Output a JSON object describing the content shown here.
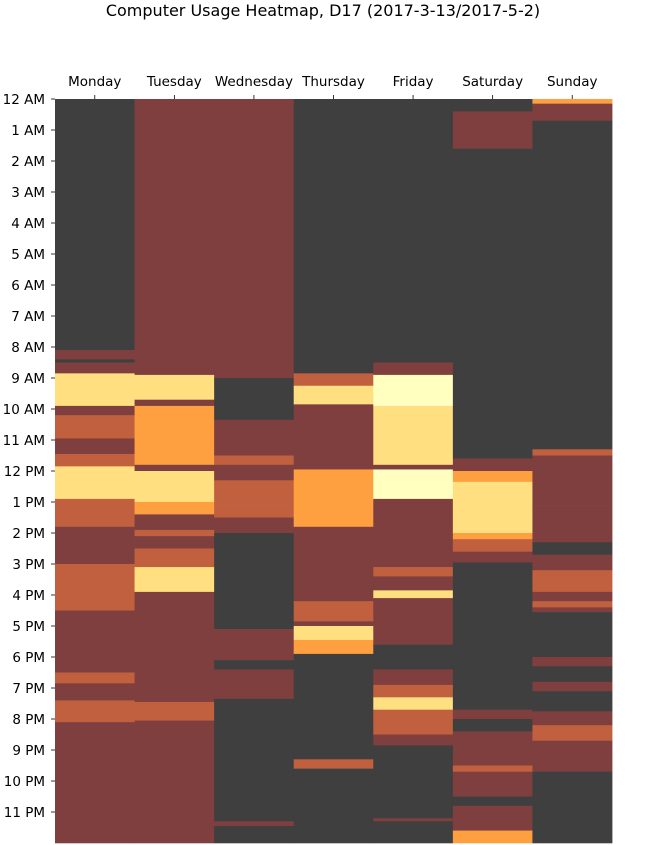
{
  "chart_data": {
    "type": "heatmap",
    "title": "Computer Usage Heatmap, D17 (2017-3-13/2017-5-2)",
    "columns": [
      "Monday",
      "Tuesday",
      "Wednesday",
      "Thursday",
      "Friday",
      "Saturday",
      "Sunday"
    ],
    "rows": [
      "12 AM",
      "1 AM",
      "2 AM",
      "3 AM",
      "4 AM",
      "5 AM",
      "6 AM",
      "7 AM",
      "8 AM",
      "9 AM",
      "10 AM",
      "11 AM",
      "12 PM",
      "1 PM",
      "2 PM",
      "3 PM",
      "4 PM",
      "5 PM",
      "6 PM",
      "7 PM",
      "8 PM",
      "9 PM",
      "10 PM",
      "11 PM"
    ],
    "y_range_hours": [
      0,
      24
    ],
    "x_tick_position": "top",
    "grid": false,
    "legend": "none",
    "colors": {
      "0": "#3f3f3f",
      "1": "#7f3f3f",
      "2": "#c0603f",
      "3": "#ffa040",
      "4": "#ffdf80",
      "5": "#ffffc0"
    },
    "segments": [
      [
        [
          0,
          8.1,
          0
        ],
        [
          8.1,
          8.4,
          1
        ],
        [
          8.4,
          8.5,
          0
        ],
        [
          8.5,
          8.85,
          1
        ],
        [
          8.85,
          9.9,
          4
        ],
        [
          9.9,
          10.2,
          1
        ],
        [
          10.2,
          10.95,
          2
        ],
        [
          10.95,
          11.45,
          1
        ],
        [
          11.45,
          11.85,
          2
        ],
        [
          11.85,
          12.9,
          4
        ],
        [
          12.9,
          13.4,
          2
        ],
        [
          13.4,
          13.8,
          2
        ],
        [
          13.8,
          15.0,
          1
        ],
        [
          15.0,
          16.5,
          2
        ],
        [
          16.5,
          18.5,
          1
        ],
        [
          18.5,
          18.85,
          2
        ],
        [
          18.85,
          19.4,
          1
        ],
        [
          19.4,
          20.1,
          2
        ],
        [
          20.1,
          24,
          1
        ]
      ],
      [
        [
          0,
          8.9,
          1
        ],
        [
          8.9,
          9.7,
          4
        ],
        [
          9.7,
          9.9,
          1
        ],
        [
          9.9,
          11.8,
          3
        ],
        [
          11.8,
          12.0,
          1
        ],
        [
          12.0,
          13.0,
          4
        ],
        [
          13.0,
          13.4,
          3
        ],
        [
          13.4,
          13.9,
          1
        ],
        [
          13.9,
          14.1,
          2
        ],
        [
          14.1,
          14.5,
          1
        ],
        [
          14.5,
          15.1,
          2
        ],
        [
          15.1,
          15.9,
          4
        ],
        [
          15.9,
          16.5,
          1
        ],
        [
          16.5,
          19.45,
          1
        ],
        [
          19.45,
          20.05,
          2
        ],
        [
          20.05,
          24,
          1
        ]
      ],
      [
        [
          0,
          9.0,
          1
        ],
        [
          9.0,
          10.35,
          0
        ],
        [
          10.35,
          11.5,
          1
        ],
        [
          11.5,
          11.8,
          2
        ],
        [
          11.8,
          12.3,
          1
        ],
        [
          12.3,
          13.1,
          2
        ],
        [
          13.1,
          13.5,
          2
        ],
        [
          13.5,
          14.0,
          1
        ],
        [
          14.0,
          14.9,
          0
        ],
        [
          14.9,
          16.9,
          0
        ],
        [
          16.9,
          17.1,
          0
        ],
        [
          17.1,
          18.1,
          1
        ],
        [
          18.1,
          18.4,
          0
        ],
        [
          18.4,
          18.8,
          1
        ],
        [
          18.8,
          19.35,
          1
        ],
        [
          19.35,
          23.3,
          0
        ],
        [
          23.3,
          23.45,
          1
        ],
        [
          23.45,
          24,
          0
        ]
      ],
      [
        [
          0,
          8.85,
          0
        ],
        [
          8.85,
          9.25,
          2
        ],
        [
          9.25,
          9.85,
          4
        ],
        [
          9.85,
          11.95,
          1
        ],
        [
          11.95,
          12.8,
          3
        ],
        [
          12.8,
          13.4,
          3
        ],
        [
          13.4,
          13.8,
          3
        ],
        [
          13.8,
          14.5,
          1
        ],
        [
          14.5,
          15.9,
          1
        ],
        [
          15.9,
          16.2,
          1
        ],
        [
          16.2,
          16.85,
          2
        ],
        [
          16.85,
          17.0,
          1
        ],
        [
          17.0,
          17.45,
          4
        ],
        [
          17.45,
          17.9,
          3
        ],
        [
          17.9,
          21.3,
          0
        ],
        [
          21.3,
          21.6,
          2
        ],
        [
          21.6,
          24,
          0
        ]
      ],
      [
        [
          0,
          8.5,
          0
        ],
        [
          8.5,
          8.9,
          1
        ],
        [
          8.9,
          9.9,
          5
        ],
        [
          9.9,
          11.8,
          4
        ],
        [
          11.8,
          11.95,
          1
        ],
        [
          11.95,
          12.9,
          5
        ],
        [
          12.9,
          15.1,
          1
        ],
        [
          15.1,
          15.4,
          2
        ],
        [
          15.4,
          15.85,
          1
        ],
        [
          15.85,
          16.1,
          4
        ],
        [
          16.1,
          16.9,
          1
        ],
        [
          16.9,
          17.6,
          1
        ],
        [
          17.6,
          18.4,
          0
        ],
        [
          18.4,
          18.9,
          1
        ],
        [
          18.9,
          19.3,
          2
        ],
        [
          19.3,
          19.7,
          4
        ],
        [
          19.7,
          20.5,
          2
        ],
        [
          20.5,
          20.85,
          1
        ],
        [
          20.85,
          23.2,
          0
        ],
        [
          23.2,
          23.3,
          1
        ],
        [
          23.3,
          24,
          0
        ]
      ],
      [
        [
          0,
          0.4,
          0
        ],
        [
          0.4,
          1.6,
          1
        ],
        [
          1.6,
          10.2,
          0
        ],
        [
          10.2,
          11.6,
          0
        ],
        [
          11.6,
          12.0,
          1
        ],
        [
          12.0,
          12.35,
          3
        ],
        [
          12.35,
          14.0,
          4
        ],
        [
          14.0,
          14.2,
          3
        ],
        [
          14.2,
          14.6,
          2
        ],
        [
          14.6,
          14.95,
          1
        ],
        [
          14.95,
          19.7,
          0
        ],
        [
          19.7,
          20.0,
          1
        ],
        [
          20.0,
          20.4,
          0
        ],
        [
          20.4,
          20.8,
          1
        ],
        [
          20.8,
          21.5,
          1
        ],
        [
          21.5,
          21.7,
          2
        ],
        [
          21.7,
          22.5,
          1
        ],
        [
          22.5,
          22.8,
          0
        ],
        [
          22.8,
          23.6,
          1
        ],
        [
          23.6,
          24,
          3
        ]
      ],
      [
        [
          0,
          0.15,
          3
        ],
        [
          0.15,
          0.7,
          1
        ],
        [
          0.7,
          10.0,
          0
        ],
        [
          10.0,
          11.3,
          0
        ],
        [
          11.3,
          11.5,
          2
        ],
        [
          11.5,
          13.1,
          1
        ],
        [
          13.1,
          14.3,
          1
        ],
        [
          14.3,
          14.7,
          0
        ],
        [
          14.7,
          15.2,
          1
        ],
        [
          15.2,
          15.9,
          2
        ],
        [
          15.9,
          16.2,
          1
        ],
        [
          16.2,
          16.4,
          2
        ],
        [
          16.4,
          16.55,
          1
        ],
        [
          16.55,
          18.0,
          0
        ],
        [
          18.0,
          18.3,
          1
        ],
        [
          18.3,
          18.8,
          0
        ],
        [
          18.8,
          19.1,
          1
        ],
        [
          19.1,
          19.75,
          0
        ],
        [
          19.75,
          20.2,
          1
        ],
        [
          20.2,
          20.7,
          2
        ],
        [
          20.7,
          21.7,
          1
        ],
        [
          21.7,
          24,
          0
        ]
      ]
    ]
  }
}
